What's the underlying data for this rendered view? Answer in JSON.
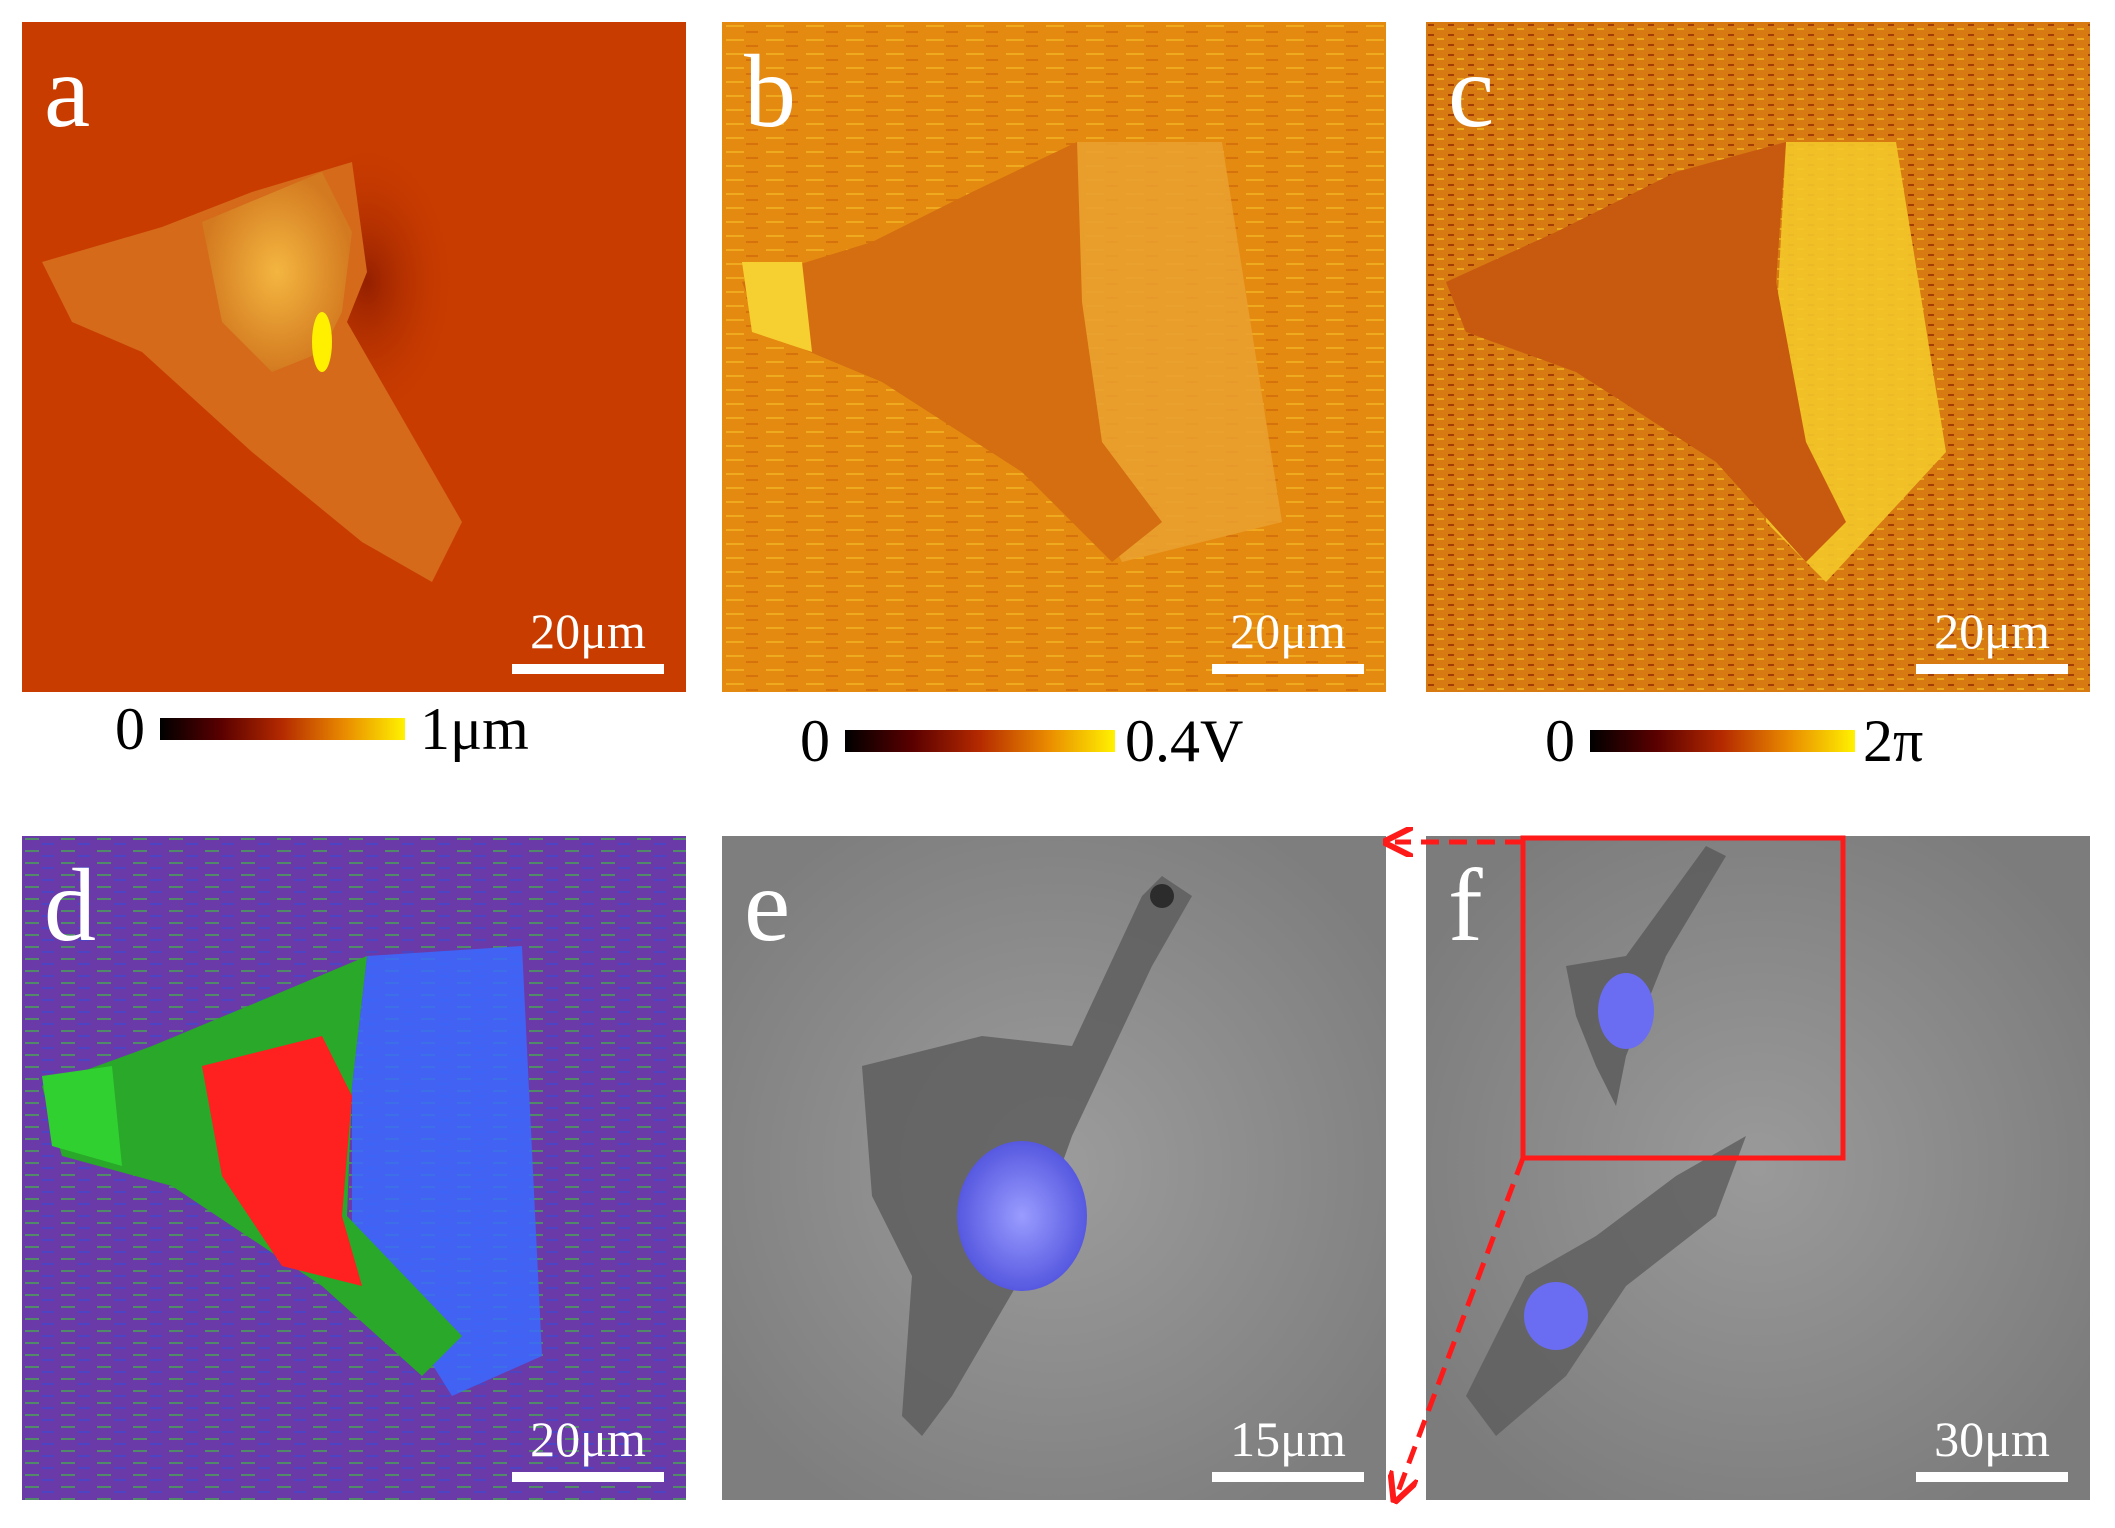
{
  "figure": {
    "panels": [
      {
        "letter": "a",
        "scale": "20μm"
      },
      {
        "letter": "b",
        "scale": "20μm"
      },
      {
        "letter": "c",
        "scale": "20μm"
      },
      {
        "letter": "d",
        "scale": "20μm"
      },
      {
        "letter": "e",
        "scale": "15μm"
      },
      {
        "letter": "f",
        "scale": "30μm"
      }
    ],
    "colorbars": [
      {
        "min": "0",
        "max": "1μm"
      },
      {
        "min": "0",
        "max": "0.4V"
      },
      {
        "min": "0",
        "max": "2π"
      }
    ],
    "colors": {
      "height_bg": "#c93c00",
      "amplitude_bg": "#e48a10",
      "phase_bg": "#d77a12",
      "zoom_box": "#ff1a1a",
      "nucleus": "#6a6cf2"
    },
    "icons": [
      "zoom-box",
      "dashed-arrow-top",
      "dashed-arrow-bottom"
    ]
  }
}
